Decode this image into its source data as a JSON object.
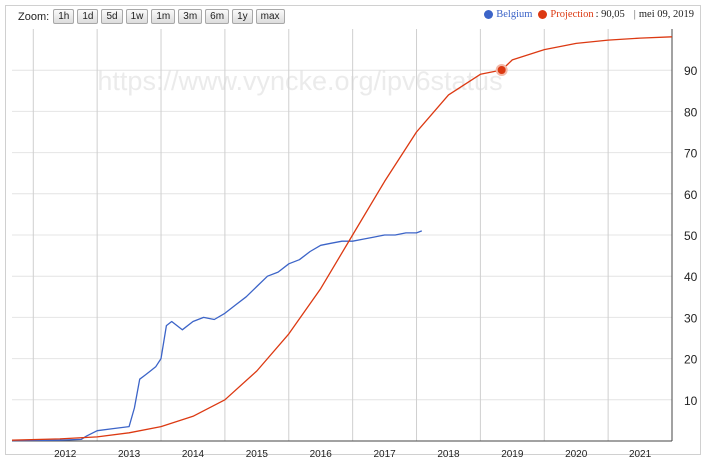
{
  "zoom": {
    "label": "Zoom:",
    "buttons": [
      "1h",
      "1d",
      "5d",
      "1w",
      "1m",
      "3m",
      "6m",
      "1y",
      "max"
    ]
  },
  "legend": {
    "belgium_label": "Belgium",
    "projection_label": "Projection",
    "projection_value": ": 90,05",
    "separator": "|",
    "date": "mei 09, 2019"
  },
  "watermark": "https://www.vyncke.org/ipv6status",
  "colors": {
    "belgium": "#3c64c8",
    "projection": "#dc3912",
    "grid": "#cccccc"
  },
  "chart_data": {
    "type": "line",
    "x_ticks": [
      "2012",
      "2013",
      "2014",
      "2015",
      "2016",
      "2017",
      "2018",
      "2019",
      "2020",
      "2021"
    ],
    "y_ticks": [
      10,
      20,
      30,
      40,
      50,
      60,
      70,
      80,
      90
    ],
    "ylim": [
      0,
      100
    ],
    "xlim": [
      "2011-09",
      "2022-01"
    ],
    "grid": true,
    "legend_position": "top-right",
    "series": [
      {
        "name": "Belgium",
        "points": [
          [
            "2011-09",
            0.1
          ],
          [
            "2012-06",
            0.2
          ],
          [
            "2012-10",
            0.4
          ],
          [
            "2012-11",
            1.2
          ],
          [
            "2013-01",
            2.5
          ],
          [
            "2013-04",
            3.0
          ],
          [
            "2013-07",
            3.5
          ],
          [
            "2013-08",
            8
          ],
          [
            "2013-09",
            15
          ],
          [
            "2013-10",
            16
          ],
          [
            "2013-11",
            17
          ],
          [
            "2013-12",
            18
          ],
          [
            "2014-01",
            20
          ],
          [
            "2014-02",
            28
          ],
          [
            "2014-03",
            29
          ],
          [
            "2014-05",
            27
          ],
          [
            "2014-07",
            29
          ],
          [
            "2014-09",
            30
          ],
          [
            "2014-11",
            29.5
          ],
          [
            "2015-01",
            31
          ],
          [
            "2015-03",
            33
          ],
          [
            "2015-05",
            35
          ],
          [
            "2015-07",
            37.5
          ],
          [
            "2015-09",
            40
          ],
          [
            "2015-11",
            41
          ],
          [
            "2016-01",
            43
          ],
          [
            "2016-03",
            44
          ],
          [
            "2016-05",
            46
          ],
          [
            "2016-07",
            47.5
          ],
          [
            "2016-09",
            48
          ],
          [
            "2016-11",
            48.5
          ],
          [
            "2017-01",
            48.5
          ],
          [
            "2017-03",
            49
          ],
          [
            "2017-05",
            49.5
          ],
          [
            "2017-07",
            50
          ],
          [
            "2017-09",
            50
          ],
          [
            "2017-11",
            50.5
          ],
          [
            "2018-01",
            50.5
          ],
          [
            "2018-02",
            51
          ]
        ]
      },
      {
        "name": "Projection",
        "points": [
          [
            "2011-09",
            0.2
          ],
          [
            "2012-06",
            0.5
          ],
          [
            "2013-01",
            1
          ],
          [
            "2013-07",
            2
          ],
          [
            "2014-01",
            3.5
          ],
          [
            "2014-07",
            6
          ],
          [
            "2015-01",
            10
          ],
          [
            "2015-07",
            17
          ],
          [
            "2016-01",
            26
          ],
          [
            "2016-07",
            37
          ],
          [
            "2017-01",
            50
          ],
          [
            "2017-07",
            63
          ],
          [
            "2018-01",
            75
          ],
          [
            "2018-07",
            84
          ],
          [
            "2019-01",
            89
          ],
          [
            "2019-05",
            90.05
          ],
          [
            "2019-07",
            92.5
          ],
          [
            "2020-01",
            95
          ],
          [
            "2020-07",
            96.5
          ],
          [
            "2021-01",
            97.3
          ],
          [
            "2021-07",
            97.8
          ],
          [
            "2022-01",
            98.1
          ]
        ]
      }
    ],
    "annotation": {
      "series": "Projection",
      "x": "2019-05",
      "y": 90.05
    }
  }
}
